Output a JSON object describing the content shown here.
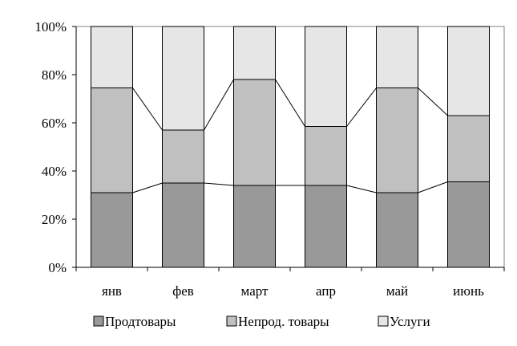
{
  "chart_data": {
    "type": "bar",
    "stacked": true,
    "normalized": true,
    "categories": [
      "янв",
      "фев",
      "март",
      "апр",
      "май",
      "июнь"
    ],
    "series": [
      {
        "name": "Продтовары",
        "values": [
          31,
          35,
          34,
          34,
          31,
          35.5
        ],
        "color": "#999999"
      },
      {
        "name": "Непрод. товары",
        "values": [
          43.5,
          22,
          44,
          24.5,
          43.5,
          27.5
        ],
        "color": "#c0c0c0"
      },
      {
        "name": "Услуги",
        "values": [
          25.5,
          43,
          22,
          41.5,
          25.5,
          37
        ],
        "color": "#e6e6e6"
      }
    ],
    "yticks": [
      "0%",
      "20%",
      "40%",
      "60%",
      "80%",
      "100%"
    ],
    "ylim": [
      0,
      100
    ],
    "series_lines": true,
    "grid": false,
    "legend_position": "bottom"
  }
}
